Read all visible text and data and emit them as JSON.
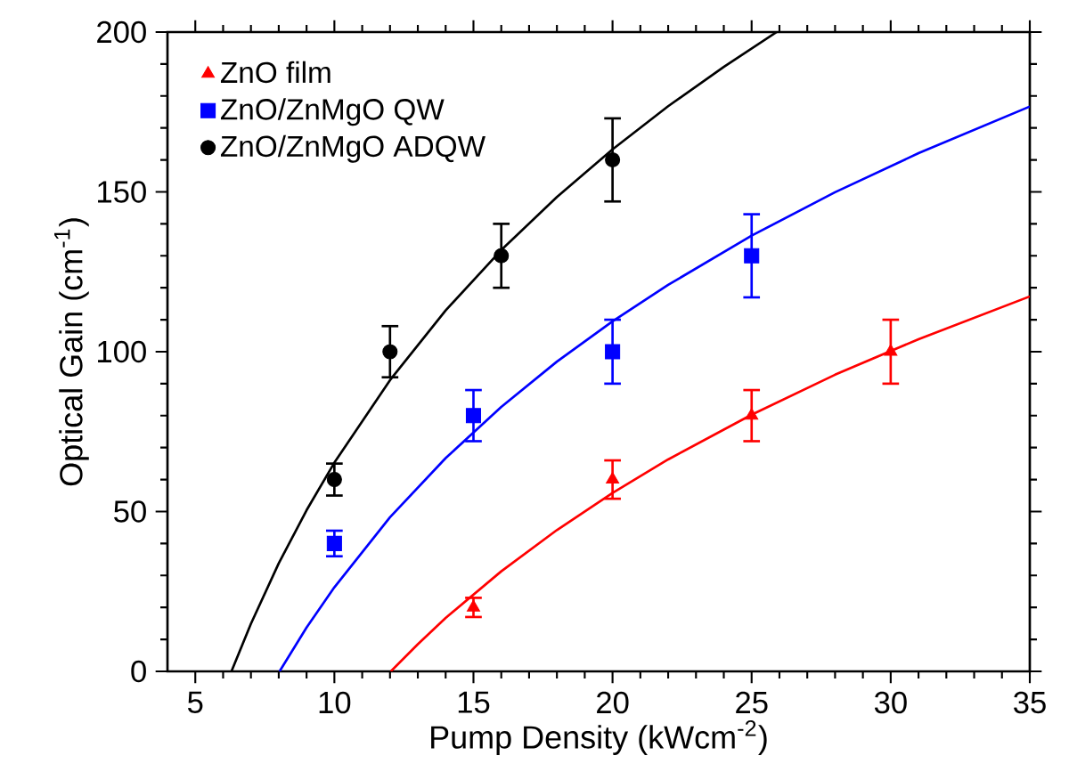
{
  "chart_data": {
    "type": "scatter",
    "xlabel": "Pump Density (kWcm$^{-2}$)",
    "ylabel": "Optical Gain (cm$^{-1}$)",
    "xlim": [
      4,
      35
    ],
    "ylim": [
      0,
      200
    ],
    "xticks": [
      5,
      10,
      15,
      20,
      25,
      30,
      35
    ],
    "yticks": [
      0,
      50,
      100,
      150,
      200
    ],
    "legend": "top left",
    "series": [
      {
        "name": "ZnO film",
        "color": "#ff0000",
        "marker": "triangle",
        "x": [
          15,
          20,
          25,
          30
        ],
        "values": [
          20,
          60,
          80,
          100
        ],
        "errors": [
          3,
          6,
          8,
          10
        ]
      },
      {
        "name": "ZnO/ZnMgO QW",
        "color": "#0000ff",
        "marker": "square",
        "x": [
          10,
          15,
          20,
          25
        ],
        "values": [
          40,
          80,
          100,
          130
        ],
        "errors": [
          4,
          8,
          10,
          13
        ]
      },
      {
        "name": "ZnO/ZnMgO ADQW",
        "color": "#000000",
        "marker": "circle",
        "x": [
          10,
          12,
          16,
          20
        ],
        "values": [
          60,
          100,
          130,
          160
        ],
        "errors": [
          5,
          8,
          10,
          13
        ]
      },
      {
        "type": "line",
        "color": "#ff0000",
        "line_style": "solid",
        "x": [
          12.03,
          13,
          14,
          16,
          18,
          20,
          22,
          25,
          28,
          31,
          35
        ],
        "values": [
          0,
          8.5,
          16.7,
          31.3,
          44.2,
          55.8,
          66.3,
          80.3,
          92.8,
          103.9,
          117.3
        ]
      },
      {
        "type": "line",
        "color": "#0000ff",
        "line_style": "solid",
        "x": [
          8.03,
          9,
          10,
          12,
          14,
          16,
          18,
          20,
          22,
          25,
          28,
          31,
          35
        ],
        "values": [
          0,
          13.7,
          26.3,
          48.2,
          66.7,
          82.7,
          96.9,
          109.5,
          120.9,
          136.3,
          149.9,
          162.1,
          176.7
        ]
      },
      {
        "type": "line",
        "color": "#000000",
        "line_style": "solid",
        "x": [
          6.3,
          7,
          8,
          9,
          10,
          12,
          14,
          16,
          18,
          20,
          22,
          24,
          25.9
        ],
        "values": [
          0,
          14.9,
          33.8,
          50.4,
          65.3,
          91.1,
          112.9,
          131.8,
          148.4,
          163.3,
          176.8,
          189.1,
          200
        ]
      }
    ]
  }
}
